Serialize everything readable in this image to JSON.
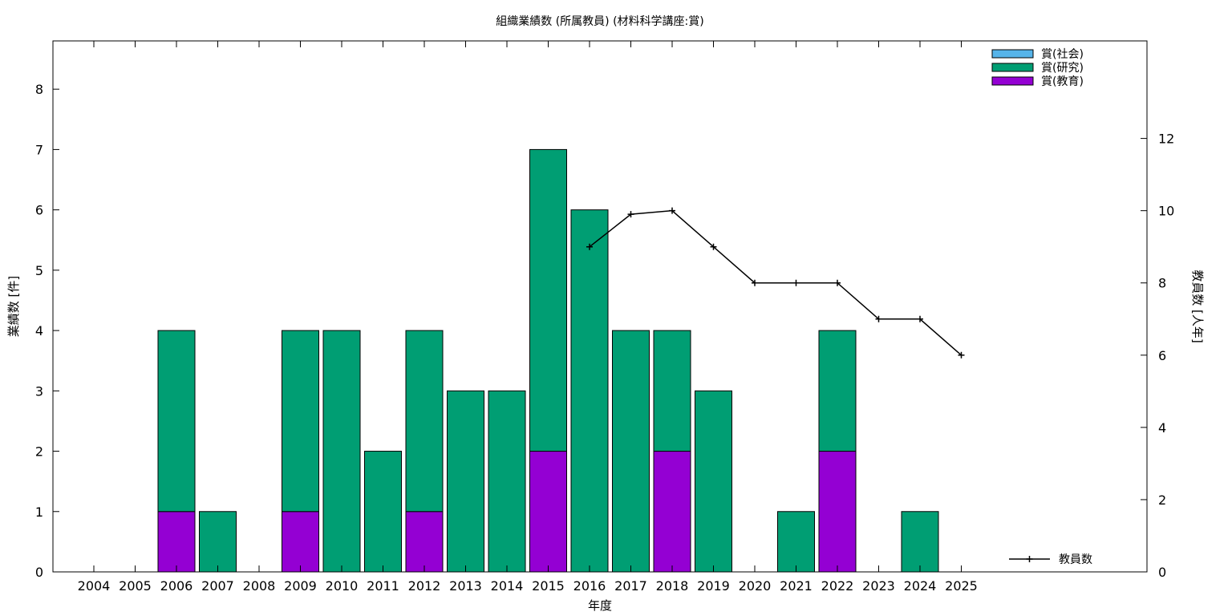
{
  "chart_data": {
    "type": "bar",
    "stacked": true,
    "title": "組織業績数 (所属教員) (材料科学講座:賞)",
    "xlabel": "年度",
    "ylabel": "業績数 [件]",
    "y2label": "教員数 [人年]",
    "categories": [
      "2004",
      "2005",
      "2006",
      "2007",
      "2008",
      "2009",
      "2010",
      "2011",
      "2012",
      "2013",
      "2014",
      "2015",
      "2016",
      "2017",
      "2018",
      "2019",
      "2020",
      "2021",
      "2022",
      "2023",
      "2024",
      "2025"
    ],
    "ylim": [
      0,
      8.8
    ],
    "yticks": [
      0,
      1,
      2,
      3,
      4,
      5,
      6,
      7,
      8
    ],
    "y2lim": [
      0,
      14.7
    ],
    "y2ticks": [
      0,
      2,
      4,
      6,
      8,
      10,
      12
    ],
    "grid": false,
    "legend_position": "top-right",
    "series": [
      {
        "name": "賞(教育)",
        "color": "#9400d3",
        "values": [
          0,
          0,
          1,
          0,
          0,
          1,
          0,
          0,
          1,
          0,
          0,
          2,
          0,
          0,
          2,
          0,
          0,
          0,
          2,
          0,
          0,
          0
        ]
      },
      {
        "name": "賞(研究)",
        "color": "#009e73",
        "values": [
          0,
          0,
          3,
          1,
          0,
          3,
          4,
          2,
          3,
          3,
          3,
          5,
          6,
          4,
          2,
          3,
          0,
          1,
          2,
          0,
          1,
          0
        ]
      },
      {
        "name": "賞(社会)",
        "color": "#56b4e9",
        "values": [
          0,
          0,
          0,
          0,
          0,
          0,
          0,
          0,
          0,
          0,
          0,
          0,
          0,
          0,
          0,
          0,
          0,
          0,
          0,
          0,
          0,
          0
        ]
      }
    ],
    "line": {
      "name": "教員数",
      "color": "#000000",
      "x": [
        "2016",
        "2017",
        "2018",
        "2019",
        "2020",
        "2021",
        "2022",
        "2023",
        "2024",
        "2025"
      ],
      "values": [
        9,
        9.9,
        10,
        9,
        8,
        8,
        8,
        7,
        7,
        6
      ]
    }
  }
}
